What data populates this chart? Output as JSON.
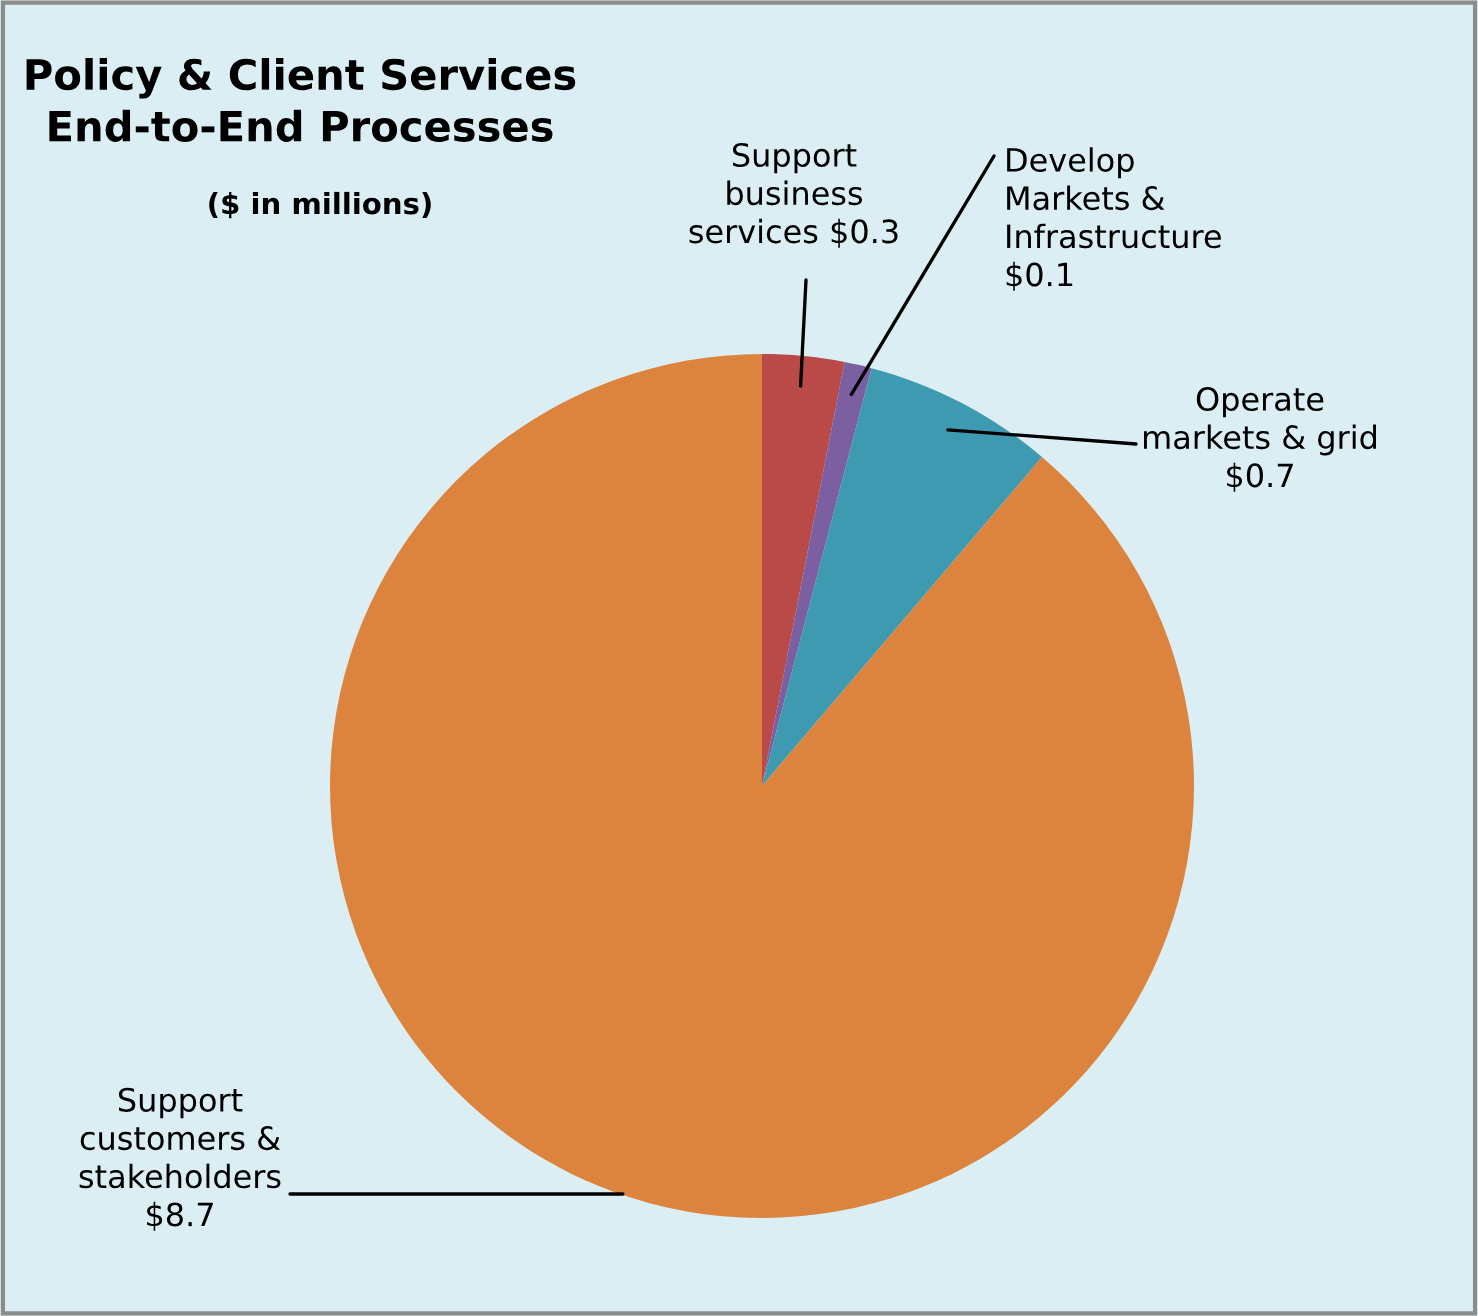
{
  "chart_data": {
    "type": "pie",
    "title": "Policy & Client Services\nEnd-to-End Processes",
    "subtitle": "($ in millions)",
    "categories": [
      "Support\nbusiness\nservices",
      "Develop\nMarkets &\nInfrastructure",
      "Operate\nmarkets & grid",
      "Support\ncustomers &\nstakeholders"
    ],
    "values": [
      0.3,
      0.1,
      0.7,
      8.7
    ],
    "value_labels": [
      "$0.3",
      "$0.1",
      "$0.7",
      "$8.7"
    ],
    "colors": [
      "#b94a48",
      "#7b5fa0",
      "#3e9ab0",
      "#dc843e"
    ]
  }
}
